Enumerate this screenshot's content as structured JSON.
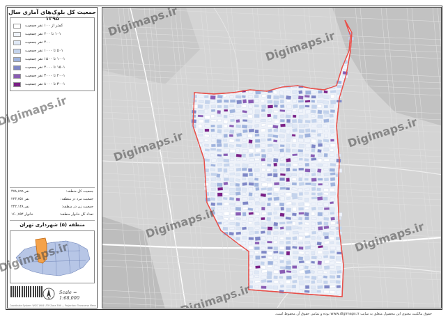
{
  "legend": {
    "title": "جمعیت کل بلوک‌های آماری سال ۱۳۹۵",
    "classes": [
      {
        "label": "کمتر از ۱۰۰ نفر جمعیت",
        "color": "#ffffff"
      },
      {
        "label": "۱۰۱ تا ۲۰۰ نفر جمعیت",
        "color": "#f0f4fb"
      },
      {
        "label": "۲۰۰ نفر جمعیت",
        "color": "#dfe8f5"
      },
      {
        "label": "۵۰۱ تا ۱۰۰۰ نفر جمعیت",
        "color": "#c3d3ec"
      },
      {
        "label": "۱۰۰۱ تا ۱۵۰۰ نفر جمعیت",
        "color": "#9fb3dd"
      },
      {
        "label": "۱۵۰۱ تا ۲۰۰۰ نفر جمعیت",
        "color": "#7f87c6"
      },
      {
        "label": "۲۰۰۱ تا ۳۰۰۰ نفر جمعیت",
        "color": "#8a5cb4"
      },
      {
        "label": "۳۰۰۱ تا ۸۰۰۰ نفر جمعیت",
        "color": "#7b1f86"
      }
    ]
  },
  "stats": [
    {
      "label": "جمعیت کل منطقه:",
      "value": "۴۷۸,۸۹۹ نفر"
    },
    {
      "label": "جمعیت مرد در منطقه:",
      "value": "۲۳۶,۷۵۱ نفر"
    },
    {
      "label": "جمعیت زن در منطقه:",
      "value": "۲۴۲,۱۴۸ نفر"
    },
    {
      "label": "تعداد کل خانوار منطقه:",
      "value": "۱۶۰,۷۵۴ خانوار"
    }
  ],
  "inset": {
    "title": "منطقه (۵) شهرداری تهران"
  },
  "scale": "Scale = 1:68,000",
  "north_label": "N",
  "credit": "Coordinate System: WGS 1984 UTM Zone 39N — Projection: Transverse Mercator",
  "watermark": "Digimaps.ir",
  "footer": "حقوق مالکیت معنوی این محصول متعلق به سایت www.digimaps.ir بوده و تمامی حقوق آن محفوظ است.",
  "colors": {
    "boundary": "#e8504a",
    "basemap": "#d6d6d6",
    "inset_highlight": "#f4a24b",
    "inset_districts": "#b7c6e6"
  }
}
